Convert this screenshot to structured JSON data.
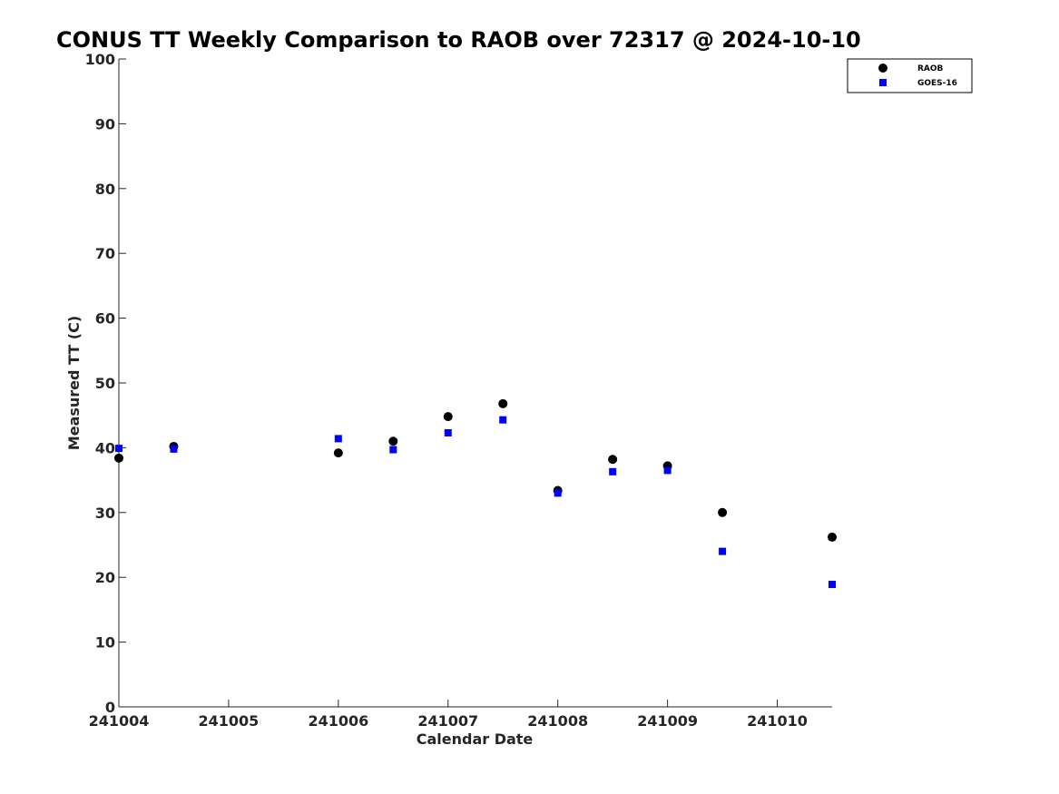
{
  "chart_data": {
    "type": "scatter",
    "title": "CONUS TT Weekly Comparison to RAOB over 72317 @ 2024-10-10",
    "xlabel": "Calendar Date",
    "ylabel": "Measured TT (C)",
    "xlim": [
      "2024-10-04",
      "2024-10-10 12:00"
    ],
    "ylim": [
      0,
      100
    ],
    "x_tick_labels": [
      "241004",
      "241005",
      "241006",
      "241007",
      "241008",
      "241009",
      "241010"
    ],
    "y_tick_labels": [
      "0",
      "10",
      "20",
      "30",
      "40",
      "50",
      "60",
      "70",
      "80",
      "90",
      "100"
    ],
    "grid": false,
    "legend_position": "top-right",
    "series": [
      {
        "name": "RAOB",
        "marker": "circle",
        "color": "#000000",
        "points": [
          {
            "x": "2024-10-04 00:00",
            "y": 38.4
          },
          {
            "x": "2024-10-04 12:00",
            "y": 40.2
          },
          {
            "x": "2024-10-06 00:00",
            "y": 39.2
          },
          {
            "x": "2024-10-06 12:00",
            "y": 41.0
          },
          {
            "x": "2024-10-07 00:00",
            "y": 44.8
          },
          {
            "x": "2024-10-07 12:00",
            "y": 46.8
          },
          {
            "x": "2024-10-08 00:00",
            "y": 33.4
          },
          {
            "x": "2024-10-08 12:00",
            "y": 38.2
          },
          {
            "x": "2024-10-09 00:00",
            "y": 37.2
          },
          {
            "x": "2024-10-09 12:00",
            "y": 30.0
          },
          {
            "x": "2024-10-10 12:00",
            "y": 26.2
          }
        ]
      },
      {
        "name": "GOES-16",
        "marker": "square",
        "color": "#0000ff",
        "points": [
          {
            "x": "2024-10-04 00:00",
            "y": 39.9
          },
          {
            "x": "2024-10-04 12:00",
            "y": 39.8
          },
          {
            "x": "2024-10-06 00:00",
            "y": 41.4
          },
          {
            "x": "2024-10-06 12:00",
            "y": 39.7
          },
          {
            "x": "2024-10-07 00:00",
            "y": 42.3
          },
          {
            "x": "2024-10-07 12:00",
            "y": 44.3
          },
          {
            "x": "2024-10-08 00:00",
            "y": 33.0
          },
          {
            "x": "2024-10-08 12:00",
            "y": 36.3
          },
          {
            "x": "2024-10-09 00:00",
            "y": 36.5
          },
          {
            "x": "2024-10-09 12:00",
            "y": 24.0
          },
          {
            "x": "2024-10-10 12:00",
            "y": 18.9
          }
        ]
      }
    ]
  }
}
